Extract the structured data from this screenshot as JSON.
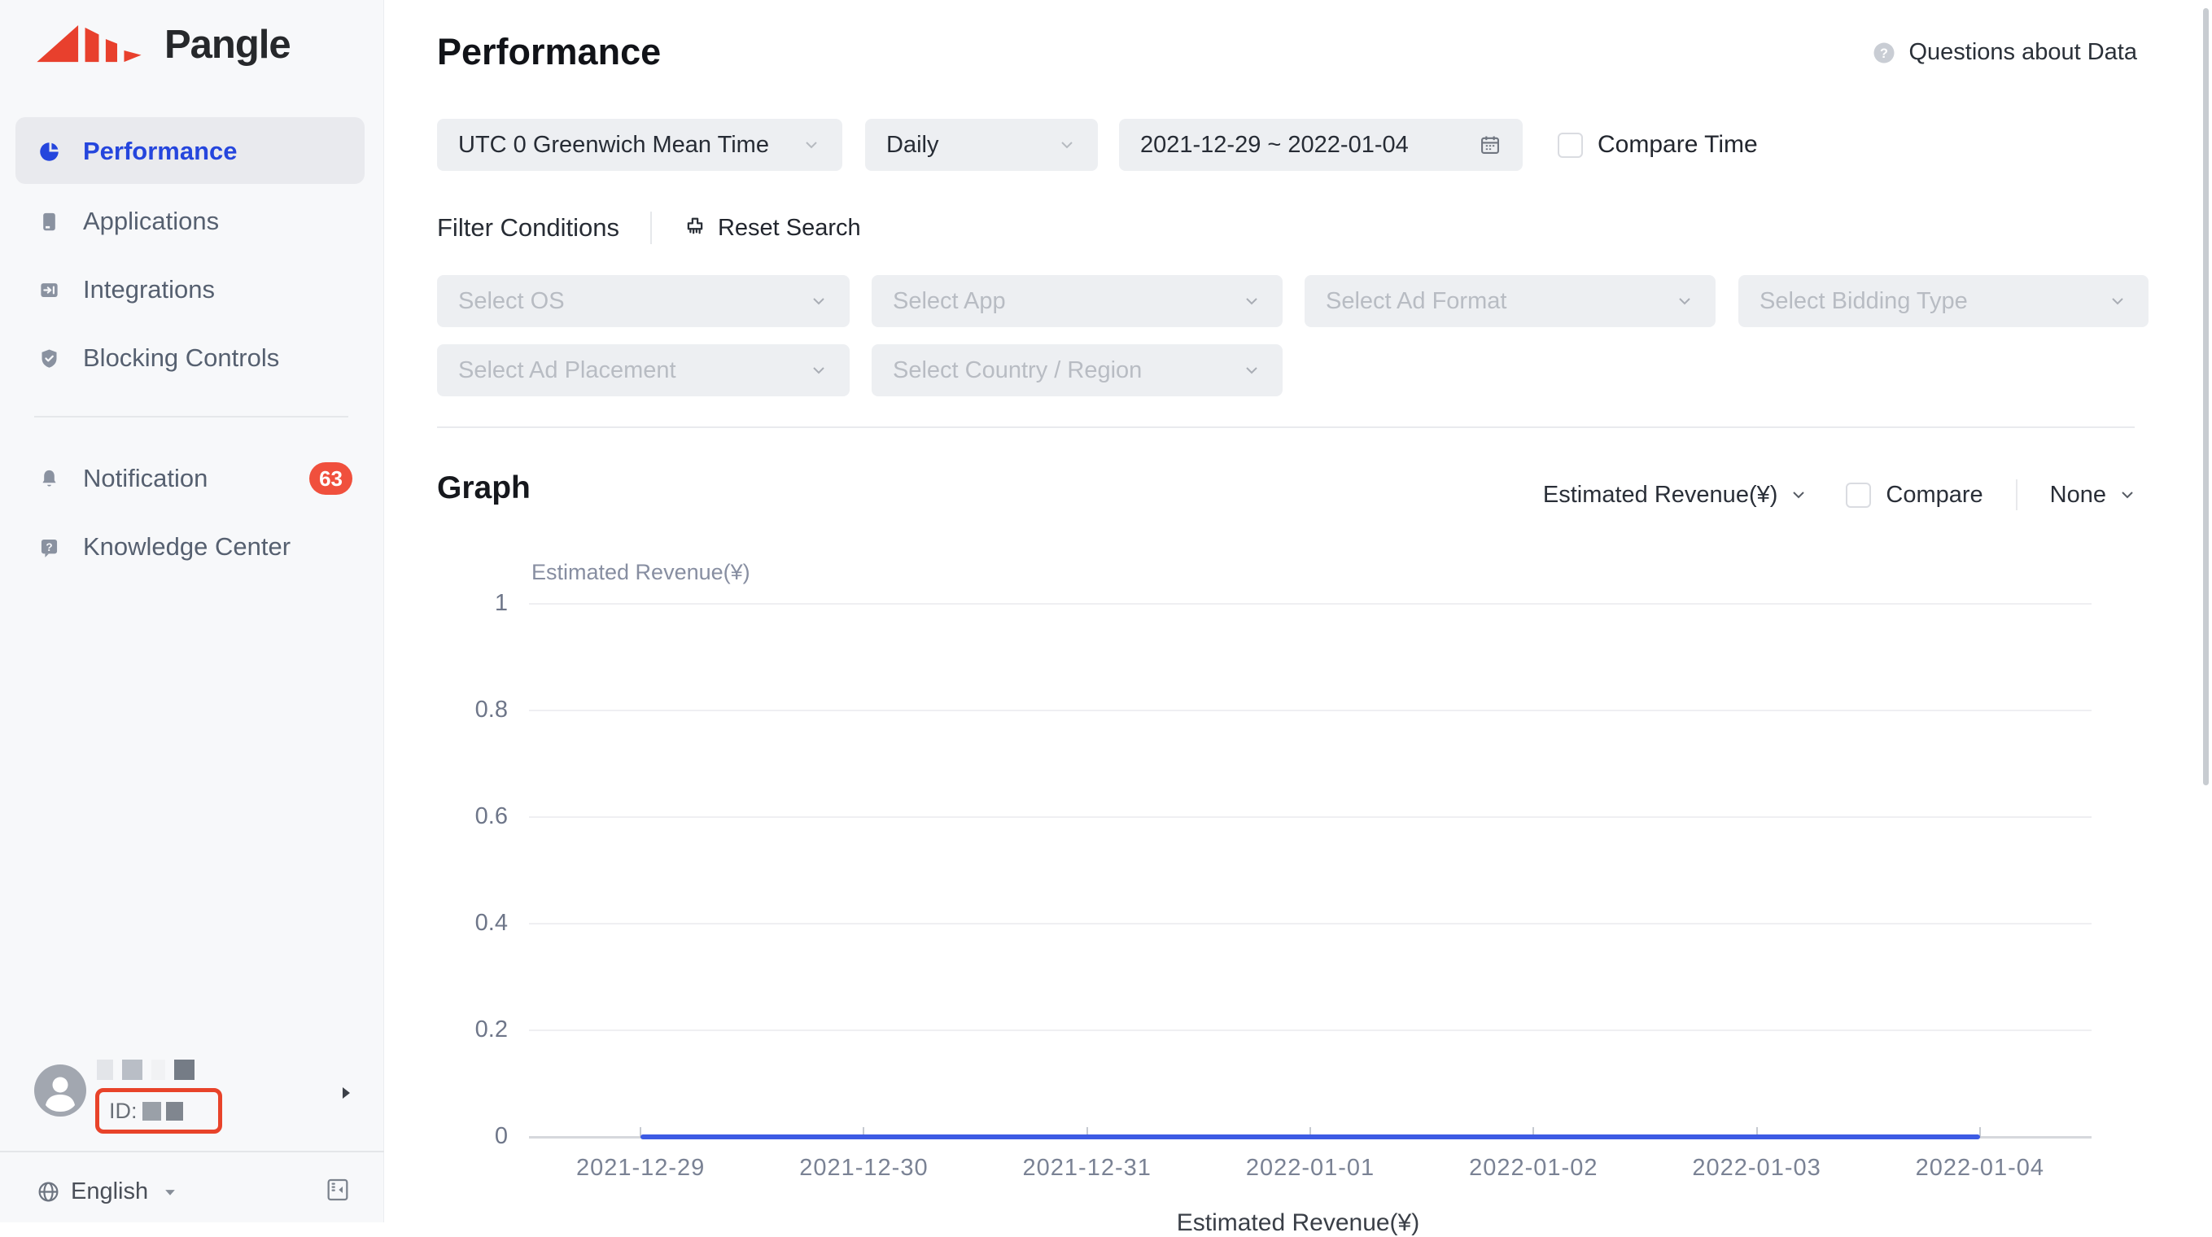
{
  "sidebar": {
    "logo_text": "Pangle",
    "nav": [
      {
        "label": "Performance",
        "icon": "pie-chart-icon",
        "active": true
      },
      {
        "label": "Applications",
        "icon": "applications-icon"
      },
      {
        "label": "Integrations",
        "icon": "integrations-icon"
      },
      {
        "label": "Blocking Controls",
        "icon": "shield-check-icon"
      }
    ],
    "secondary_nav": [
      {
        "label": "Notification",
        "icon": "bell-icon",
        "badge": "63"
      },
      {
        "label": "Knowledge Center",
        "icon": "help-bubble-icon"
      }
    ],
    "user": {
      "id_label": "ID:"
    },
    "language": "English"
  },
  "header": {
    "title": "Performance",
    "help_link": "Questions about Data"
  },
  "filters": {
    "timezone": "UTC 0 Greenwich Mean Time",
    "granularity": "Daily",
    "date_range": "2021-12-29 ~ 2022-01-04",
    "compare_time_label": "Compare Time",
    "conditions_label": "Filter Conditions",
    "reset_label": "Reset Search",
    "selects_row1": [
      "Select OS",
      "Select App",
      "Select Ad Format",
      "Select Bidding Type"
    ],
    "selects_row2": [
      "Select Ad Placement",
      "Select Country / Region"
    ]
  },
  "graph": {
    "section_title": "Graph",
    "metric": "Estimated Revenue(¥)",
    "compare_label": "Compare",
    "overlay_dimension": "None"
  },
  "chart_data": {
    "type": "line",
    "title": "",
    "xlabel": "",
    "ylabel": "Estimated Revenue(¥)",
    "x": [
      "2021-12-29",
      "2021-12-30",
      "2021-12-31",
      "2022-01-01",
      "2022-01-02",
      "2022-01-03",
      "2022-01-04"
    ],
    "series": [
      {
        "name": "Estimated Revenue(¥)",
        "values": [
          0,
          0,
          0,
          0,
          0,
          0,
          0
        ],
        "color": "#3d5be4"
      }
    ],
    "ylim": [
      0,
      1
    ],
    "yticks": [
      0,
      0.2,
      0.4,
      0.6,
      0.8,
      1
    ],
    "grid": true,
    "legend": "Estimated Revenue(¥)",
    "legend_position": "bottom"
  },
  "colors": {
    "accent_blue": "#2546dd",
    "line_blue": "#3d5be4",
    "badge_red": "#f0503d",
    "annotation_red": "#e8432a",
    "sidebar_bg": "#f7f8fa",
    "select_bg": "#edeff2"
  }
}
